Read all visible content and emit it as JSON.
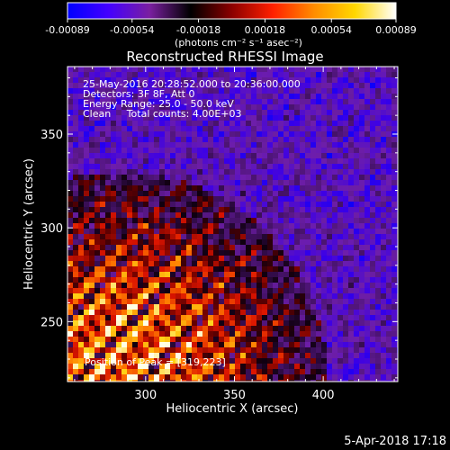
{
  "chart_data": {
    "type": "heatmap",
    "title": "Reconstructed RHESSI Image",
    "xlabel": "Heliocentric X (arcsec)",
    "ylabel": "Heliocentric Y (arcsec)",
    "xlim": [
      256,
      442
    ],
    "ylim": [
      218,
      386
    ],
    "x_ticks": [
      300,
      350,
      400
    ],
    "y_ticks": [
      250,
      300,
      350
    ],
    "colorbar": {
      "label": "(photons cm⁻² s⁻¹ asec⁻²)",
      "ticks": [
        "-0.00089",
        "-0.00054",
        "-0.00018",
        "0.00018",
        "0.00054",
        "0.00089"
      ],
      "range": [
        -0.00089,
        0.00089
      ],
      "colors": [
        "#0000ff",
        "#4400ff",
        "#7a1fa0",
        "#000000",
        "#8b0000",
        "#ff2000",
        "#ff8c00",
        "#ffd700",
        "#ffffff"
      ]
    },
    "annotations": [
      "25-May-2016 20:28:52.000 to 20:36:00.000",
      "Detectors: 3F 8F, Att 0",
      "Energy Range: 25.0 - 50.0 keV",
      "Clean     Total counts: 4.00E+03"
    ],
    "peak_label": "Position of Peak = [319,223]",
    "peak": [
      319,
      223
    ],
    "grid": false
  },
  "footer": {
    "date": "5-Apr-2018 17:18"
  }
}
